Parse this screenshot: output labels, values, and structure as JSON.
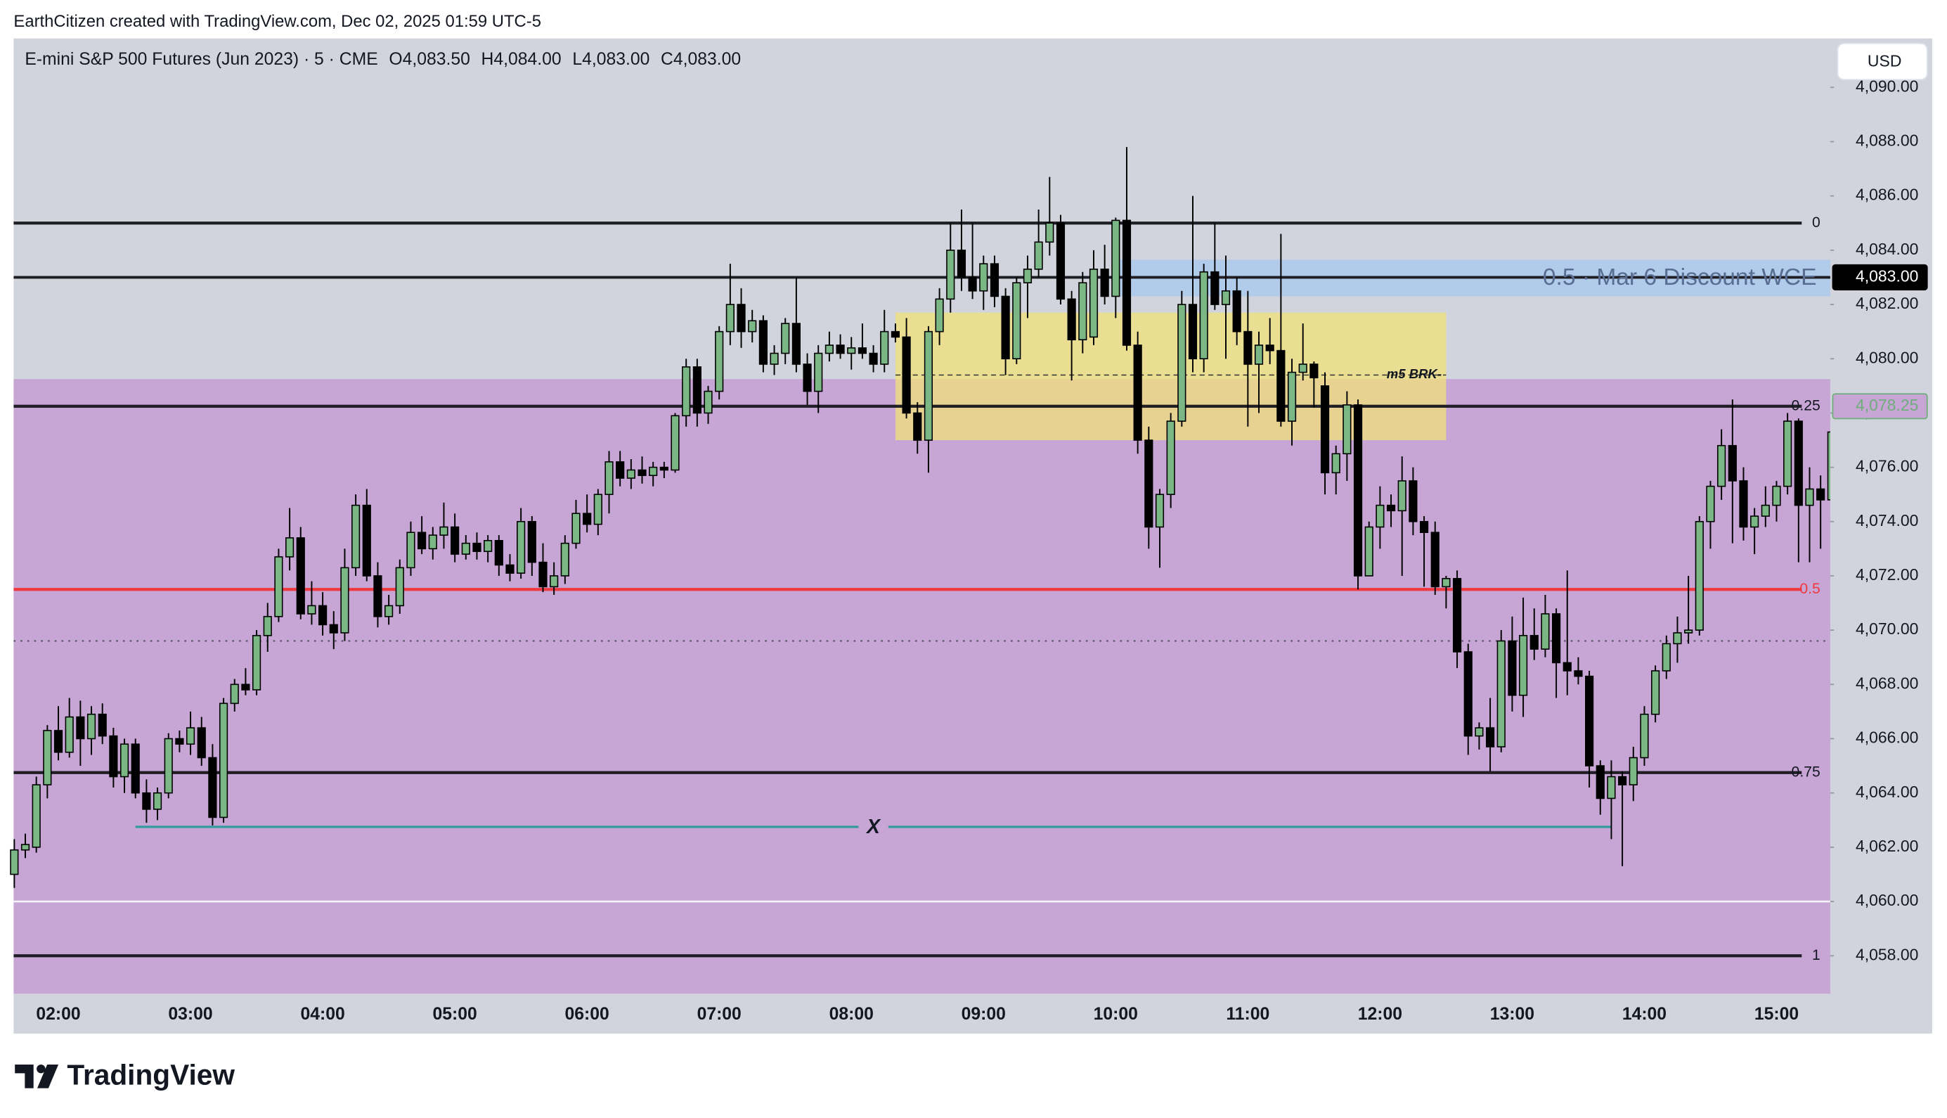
{
  "header": {
    "credit": "EarthCitizen created with TradingView.com, Dec 02, 2025 01:59 UTC-5"
  },
  "chart_data": {
    "type": "candlestick",
    "title": "E-mini S&P 500 Futures (Jun 2023) · 5 · CME",
    "ohlc_legend": [
      "O4,083.50",
      "H4,084.00",
      "L4,083.00",
      "C4,083.00"
    ],
    "currency": "USD",
    "up_color": "#7ab784",
    "down_color": "#000000",
    "x": [
      "01:40",
      "01:45",
      "01:50",
      "01:55",
      "02:00",
      "02:05",
      "02:10",
      "02:15",
      "02:20",
      "02:25",
      "02:30",
      "02:35",
      "02:40",
      "02:45",
      "02:50",
      "02:55",
      "03:00",
      "03:05",
      "03:10",
      "03:15",
      "03:20",
      "03:25",
      "03:30",
      "03:35",
      "03:40",
      "03:45",
      "03:50",
      "03:55",
      "04:00",
      "04:05",
      "04:10",
      "04:15",
      "04:20",
      "04:25",
      "04:30",
      "04:35",
      "04:40",
      "04:45",
      "04:50",
      "04:55",
      "05:00",
      "05:05",
      "05:10",
      "05:15",
      "05:20",
      "05:25",
      "05:30",
      "05:35",
      "05:40",
      "05:45",
      "05:50",
      "05:55",
      "06:00",
      "06:05",
      "06:10",
      "06:15",
      "06:20",
      "06:25",
      "06:30",
      "06:35",
      "06:40",
      "06:45",
      "06:50",
      "06:55",
      "07:00",
      "07:05",
      "07:10",
      "07:15",
      "07:20",
      "07:25",
      "07:30",
      "07:35",
      "07:40",
      "07:45",
      "07:50",
      "07:55",
      "08:00",
      "08:05",
      "08:10",
      "08:15",
      "08:20",
      "08:25",
      "08:30",
      "08:35",
      "08:40",
      "08:45",
      "08:50",
      "08:55",
      "09:00",
      "09:05",
      "09:10",
      "09:15",
      "09:20",
      "09:25",
      "09:30",
      "09:35",
      "09:40",
      "09:45",
      "09:50",
      "09:55",
      "10:00",
      "10:05",
      "10:10",
      "10:15",
      "10:20",
      "10:25",
      "10:30",
      "10:35",
      "10:40",
      "10:45",
      "10:50",
      "10:55",
      "11:00",
      "11:05",
      "11:10",
      "11:15",
      "11:20",
      "11:25",
      "11:30",
      "11:35",
      "11:40",
      "11:45",
      "11:50",
      "11:55",
      "12:00",
      "12:05",
      "12:10",
      "12:15",
      "12:20",
      "12:25",
      "12:30",
      "12:35",
      "12:40",
      "12:45",
      "12:50",
      "12:55",
      "13:00",
      "13:05",
      "13:10",
      "13:15",
      "13:20",
      "13:25",
      "13:30",
      "13:35",
      "13:40",
      "13:45",
      "13:50",
      "13:55",
      "14:00",
      "14:05",
      "14:10",
      "14:15",
      "14:20",
      "14:25",
      "14:30",
      "14:35",
      "14:40",
      "14:45",
      "14:50",
      "14:55",
      "15:00",
      "15:05",
      "15:10",
      "15:15",
      "15:20",
      "15:25"
    ],
    "candles": [
      [
        4061.0,
        4062.3,
        4060.5,
        4061.9
      ],
      [
        4061.9,
        4062.5,
        4061.6,
        4062.1
      ],
      [
        4062.0,
        4064.6,
        4061.8,
        4064.3
      ],
      [
        4064.3,
        4066.5,
        4063.8,
        4066.3
      ],
      [
        4066.3,
        4067.2,
        4065.2,
        4065.5
      ],
      [
        4065.5,
        4067.5,
        4065.3,
        4066.8
      ],
      [
        4066.8,
        4067.4,
        4065.0,
        4066.0
      ],
      [
        4066.0,
        4067.2,
        4065.4,
        4066.9
      ],
      [
        4066.9,
        4067.3,
        4065.8,
        4066.1
      ],
      [
        4066.1,
        4066.4,
        4064.2,
        4064.6
      ],
      [
        4064.6,
        4066.0,
        4064.0,
        4065.8
      ],
      [
        4065.8,
        4066.0,
        4063.8,
        4064.0
      ],
      [
        4064.0,
        4064.5,
        4062.9,
        4063.4
      ],
      [
        4063.4,
        4064.2,
        4063.0,
        4064.0
      ],
      [
        4064.0,
        4066.2,
        4063.8,
        4066.0
      ],
      [
        4066.0,
        4066.3,
        4065.5,
        4065.8
      ],
      [
        4065.8,
        4067.0,
        4065.4,
        4066.4
      ],
      [
        4066.4,
        4066.8,
        4065.0,
        4065.3
      ],
      [
        4065.3,
        4065.8,
        4062.8,
        4063.1
      ],
      [
        4063.1,
        4067.5,
        4062.9,
        4067.3
      ],
      [
        4067.3,
        4068.2,
        4067.0,
        4068.0
      ],
      [
        4068.0,
        4068.6,
        4067.6,
        4067.8
      ],
      [
        4067.8,
        4070.0,
        4067.6,
        4069.8
      ],
      [
        4069.8,
        4071.0,
        4069.2,
        4070.5
      ],
      [
        4070.5,
        4073.0,
        4070.3,
        4072.7
      ],
      [
        4072.7,
        4074.5,
        4072.2,
        4073.4
      ],
      [
        4073.4,
        4073.8,
        4070.4,
        4070.6
      ],
      [
        4070.6,
        4071.8,
        4070.2,
        4070.9
      ],
      [
        4070.9,
        4071.4,
        4069.8,
        4070.2
      ],
      [
        4070.2,
        4070.7,
        4069.3,
        4069.9
      ],
      [
        4069.9,
        4073.0,
        4069.6,
        4072.3
      ],
      [
        4072.3,
        4075.0,
        4072.0,
        4074.6
      ],
      [
        4074.6,
        4075.2,
        4071.8,
        4072.0
      ],
      [
        4072.0,
        4072.5,
        4070.1,
        4070.5
      ],
      [
        4070.5,
        4071.3,
        4070.2,
        4070.9
      ],
      [
        4070.9,
        4072.6,
        4070.6,
        4072.3
      ],
      [
        4072.3,
        4074.0,
        4072.0,
        4073.6
      ],
      [
        4073.6,
        4074.2,
        4072.8,
        4073.0
      ],
      [
        4073.0,
        4073.8,
        4072.6,
        4073.5
      ],
      [
        4073.5,
        4074.7,
        4073.0,
        4073.8
      ],
      [
        4073.8,
        4074.3,
        4072.5,
        4072.8
      ],
      [
        4072.8,
        4073.5,
        4072.6,
        4073.2
      ],
      [
        4073.2,
        4073.6,
        4072.6,
        4072.9
      ],
      [
        4072.9,
        4073.5,
        4072.5,
        4073.3
      ],
      [
        4073.3,
        4073.5,
        4072.0,
        4072.4
      ],
      [
        4072.4,
        4072.8,
        4071.8,
        4072.1
      ],
      [
        4072.1,
        4074.5,
        4071.9,
        4074.0
      ],
      [
        4074.0,
        4074.2,
        4072.0,
        4072.5
      ],
      [
        4072.5,
        4073.2,
        4071.4,
        4071.6
      ],
      [
        4071.6,
        4072.5,
        4071.3,
        4072.0
      ],
      [
        4072.0,
        4073.5,
        4071.7,
        4073.2
      ],
      [
        4073.2,
        4074.8,
        4073.0,
        4074.3
      ],
      [
        4074.3,
        4075.0,
        4073.6,
        4073.9
      ],
      [
        4073.9,
        4075.2,
        4073.5,
        4075.0
      ],
      [
        4075.0,
        4076.6,
        4074.3,
        4076.2
      ],
      [
        4076.2,
        4076.6,
        4075.3,
        4075.6
      ],
      [
        4075.6,
        4076.3,
        4075.2,
        4075.9
      ],
      [
        4075.9,
        4076.4,
        4075.4,
        4075.7
      ],
      [
        4075.7,
        4076.2,
        4075.3,
        4076.0
      ],
      [
        4076.0,
        4076.2,
        4075.6,
        4075.9
      ],
      [
        4075.9,
        4078.0,
        4075.8,
        4077.9
      ],
      [
        4077.9,
        4080.0,
        4077.5,
        4079.7
      ],
      [
        4079.7,
        4080.0,
        4077.5,
        4078.0
      ],
      [
        4078.0,
        4079.0,
        4077.6,
        4078.8
      ],
      [
        4078.8,
        4081.2,
        4078.5,
        4081.0
      ],
      [
        4081.0,
        4083.5,
        4080.5,
        4082.0
      ],
      [
        4082.0,
        4082.6,
        4080.4,
        4081.0
      ],
      [
        4081.0,
        4081.8,
        4080.6,
        4081.4
      ],
      [
        4081.4,
        4081.6,
        4079.5,
        4079.8
      ],
      [
        4079.8,
        4080.5,
        4079.4,
        4080.2
      ],
      [
        4080.2,
        4081.5,
        4079.8,
        4081.3
      ],
      [
        4081.3,
        4083.0,
        4079.5,
        4079.8
      ],
      [
        4079.8,
        4080.2,
        4078.3,
        4078.8
      ],
      [
        4078.8,
        4080.5,
        4078.0,
        4080.2
      ],
      [
        4080.2,
        4081.0,
        4079.9,
        4080.5
      ],
      [
        4080.5,
        4080.9,
        4080.0,
        4080.2
      ],
      [
        4080.2,
        4080.8,
        4079.6,
        4080.4
      ],
      [
        4080.4,
        4081.3,
        4080.0,
        4080.2
      ],
      [
        4080.2,
        4080.5,
        4079.5,
        4079.8
      ],
      [
        4079.8,
        4081.8,
        4079.5,
        4081.0
      ],
      [
        4081.0,
        4081.3,
        4080.6,
        4080.8
      ],
      [
        4080.8,
        4081.5,
        4077.8,
        4078.0
      ],
      [
        4078.0,
        4078.4,
        4076.5,
        4077.0
      ],
      [
        4077.0,
        4081.2,
        4075.8,
        4081.0
      ],
      [
        4081.0,
        4082.6,
        4080.5,
        4082.2
      ],
      [
        4082.2,
        4085.0,
        4081.7,
        4084.0
      ],
      [
        4084.0,
        4085.5,
        4082.5,
        4083.0
      ],
      [
        4083.0,
        4085.0,
        4082.2,
        4082.5
      ],
      [
        4082.5,
        4083.8,
        4081.8,
        4083.5
      ],
      [
        4083.5,
        4083.8,
        4081.9,
        4082.3
      ],
      [
        4082.3,
        4082.6,
        4079.4,
        4080.0
      ],
      [
        4080.0,
        4083.0,
        4079.8,
        4082.8
      ],
      [
        4082.8,
        4083.8,
        4081.5,
        4083.3
      ],
      [
        4083.3,
        4085.5,
        4083.0,
        4084.3
      ],
      [
        4084.3,
        4086.7,
        4083.8,
        4085.0
      ],
      [
        4085.0,
        4085.3,
        4082.0,
        4082.2
      ],
      [
        4082.2,
        4082.5,
        4079.2,
        4080.7
      ],
      [
        4080.7,
        4083.2,
        4080.2,
        4082.8
      ],
      [
        4080.8,
        4084.0,
        4080.5,
        4083.3
      ],
      [
        4083.3,
        4084.2,
        4082.0,
        4082.3
      ],
      [
        4082.3,
        4085.2,
        4081.5,
        4085.1
      ],
      [
        4085.1,
        4087.8,
        4080.3,
        4080.5
      ],
      [
        4080.5,
        4081.0,
        4076.5,
        4077.0
      ],
      [
        4077.0,
        4077.5,
        4073.0,
        4073.8
      ],
      [
        4073.8,
        4075.2,
        4072.3,
        4075.0
      ],
      [
        4075.0,
        4078.0,
        4074.5,
        4077.7
      ],
      [
        4077.7,
        4082.5,
        4077.5,
        4082.0
      ],
      [
        4082.0,
        4086.0,
        4079.5,
        4080.0
      ],
      [
        4080.0,
        4083.5,
        4079.5,
        4083.2
      ],
      [
        4083.2,
        4085.0,
        4081.8,
        4082.0
      ],
      [
        4082.0,
        4083.8,
        4080.0,
        4082.5
      ],
      [
        4082.5,
        4083.0,
        4080.5,
        4081.0
      ],
      [
        4081.0,
        4082.5,
        4077.5,
        4079.8
      ],
      [
        4079.8,
        4081.0,
        4078.0,
        4080.5
      ],
      [
        4080.5,
        4081.5,
        4079.8,
        4080.3
      ],
      [
        4080.3,
        4084.6,
        4077.5,
        4077.7
      ],
      [
        4077.7,
        4080.0,
        4076.8,
        4079.5
      ],
      [
        4079.5,
        4081.3,
        4079.2,
        4079.8
      ],
      [
        4079.8,
        4079.9,
        4078.2,
        4079.3
      ],
      [
        4079.0,
        4079.5,
        4075.0,
        4075.8
      ],
      [
        4075.8,
        4076.8,
        4075.0,
        4076.5
      ],
      [
        4076.5,
        4078.8,
        4075.5,
        4078.3
      ],
      [
        4078.3,
        4078.5,
        4071.5,
        4072.0
      ],
      [
        4072.0,
        4074.0,
        4072.0,
        4073.8
      ],
      [
        4073.8,
        4075.3,
        4073.0,
        4074.6
      ],
      [
        4074.6,
        4075.0,
        4073.8,
        4074.4
      ],
      [
        4074.4,
        4076.4,
        4072.0,
        4075.5
      ],
      [
        4075.5,
        4076.0,
        4073.5,
        4074.0
      ],
      [
        4074.0,
        4074.2,
        4071.6,
        4073.6
      ],
      [
        4073.6,
        4074.0,
        4071.3,
        4071.6
      ],
      [
        4071.6,
        4072.0,
        4070.8,
        4071.9
      ],
      [
        4071.9,
        4072.2,
        4068.6,
        4069.2
      ],
      [
        4069.2,
        4069.5,
        4065.4,
        4066.1
      ],
      [
        4066.1,
        4066.6,
        4065.6,
        4066.4
      ],
      [
        4066.4,
        4067.5,
        4064.8,
        4065.7
      ],
      [
        4065.7,
        4070.0,
        4065.5,
        4069.6
      ],
      [
        4069.6,
        4070.5,
        4067.0,
        4067.6
      ],
      [
        4067.6,
        4071.2,
        4066.8,
        4069.8
      ],
      [
        4069.8,
        4070.8,
        4068.9,
        4069.3
      ],
      [
        4069.3,
        4071.3,
        4069.0,
        4070.6
      ],
      [
        4070.6,
        4070.8,
        4067.5,
        4068.8
      ],
      [
        4068.8,
        4072.2,
        4067.6,
        4068.5
      ],
      [
        4068.5,
        4069.0,
        4068.0,
        4068.3
      ],
      [
        4068.3,
        4068.5,
        4064.2,
        4065.0
      ],
      [
        4065.0,
        4065.2,
        4063.2,
        4063.8
      ],
      [
        4063.8,
        4065.2,
        4062.3,
        4064.6
      ],
      [
        4064.6,
        4064.8,
        4061.3,
        4064.3
      ],
      [
        4064.3,
        4065.7,
        4063.7,
        4065.3
      ],
      [
        4065.3,
        4067.2,
        4065.0,
        4066.9
      ],
      [
        4066.9,
        4068.7,
        4066.6,
        4068.5
      ],
      [
        4068.5,
        4069.8,
        4068.2,
        4069.5
      ],
      [
        4069.5,
        4070.5,
        4068.8,
        4069.9
      ],
      [
        4069.9,
        4072.0,
        4069.5,
        4070.0
      ],
      [
        4070.0,
        4074.2,
        4069.8,
        4074.0
      ],
      [
        4074.0,
        4075.5,
        4073.0,
        4075.3
      ],
      [
        4075.3,
        4077.4,
        4074.8,
        4076.8
      ],
      [
        4076.8,
        4078.5,
        4073.2,
        4075.5
      ],
      [
        4075.5,
        4076.0,
        4073.3,
        4073.8
      ],
      [
        4073.8,
        4074.5,
        4072.8,
        4074.2
      ],
      [
        4074.2,
        4075.3,
        4073.8,
        4074.6
      ],
      [
        4074.6,
        4075.5,
        4074.0,
        4075.3
      ],
      [
        4075.3,
        4078.0,
        4075.0,
        4077.7
      ],
      [
        4077.7,
        4077.8,
        4072.5,
        4074.6
      ],
      [
        4074.6,
        4076.0,
        4072.5,
        4075.2
      ],
      [
        4075.2,
        4075.7,
        4073.0,
        4074.8
      ],
      [
        4074.8,
        4077.5,
        4074.6,
        4077.3
      ]
    ],
    "ylim": [
      4056.6,
      4091.8
    ],
    "yticks": [
      {
        "value": 4058,
        "label": "4,058.00"
      },
      {
        "value": 4060,
        "label": "4,060.00"
      },
      {
        "value": 4062,
        "label": "4,062.00"
      },
      {
        "value": 4064,
        "label": "4,064.00"
      },
      {
        "value": 4066,
        "label": "4,066.00"
      },
      {
        "value": 4068,
        "label": "4,068.00"
      },
      {
        "value": 4070,
        "label": "4,070.00"
      },
      {
        "value": 4072,
        "label": "4,072.00"
      },
      {
        "value": 4074,
        "label": "4,074.00"
      },
      {
        "value": 4076,
        "label": "4,076.00"
      },
      {
        "value": 4078,
        "label": "4,078.00"
      },
      {
        "value": 4080,
        "label": "4,080.00"
      },
      {
        "value": 4082,
        "label": "4,082.00"
      },
      {
        "value": 4084,
        "label": "4,084.00"
      },
      {
        "value": 4086,
        "label": "4,086.00"
      },
      {
        "value": 4088,
        "label": "4,088.00"
      },
      {
        "value": 4090,
        "label": "4,090.00"
      }
    ],
    "xticks": [
      "02:00",
      "03:00",
      "04:00",
      "05:00",
      "06:00",
      "07:00",
      "08:00",
      "09:00",
      "10:00",
      "11:00",
      "12:00",
      "13:00",
      "14:00",
      "15:00"
    ],
    "price_labels": [
      {
        "value": 4083,
        "label": "4,083.00",
        "color": "#000000"
      },
      {
        "value": 4078.25,
        "label": "4,078.25",
        "color": "#6fae7b"
      }
    ],
    "background_zone": {
      "top": 4079.25,
      "color": "#c7a5d5",
      "above_color": "#d1d4dc"
    },
    "fib_levels": [
      {
        "ratio": 0,
        "price": 4085,
        "color": "#1e1e24"
      },
      {
        "ratio": 0.25,
        "price": 4078.25,
        "color": "#1e1e24"
      },
      {
        "ratio": 0.5,
        "price": 4071.5,
        "color": "#f0393f"
      },
      {
        "ratio": 0.75,
        "price": 4064.75,
        "color": "#1e1e24"
      },
      {
        "ratio": 1,
        "price": 4058,
        "color": "#1e1e24"
      }
    ],
    "lines": [
      {
        "price": 4083,
        "color": "#1e1e24",
        "width": 2.2,
        "dash": ""
      },
      {
        "price": 4069.6,
        "color": "#555560",
        "width": 1.2,
        "dash": "1.5,4"
      },
      {
        "price": 4060,
        "color": "#f4f4f8",
        "width": 1.5,
        "dash": ""
      }
    ],
    "boxes": [
      {
        "top": 4081.7,
        "bottom": 4077.0,
        "start": "08:20",
        "end": "12:30",
        "color": "#f2e27a",
        "opacity": 0.75,
        "mid": 4079.4,
        "text": "m5 BRK-"
      },
      {
        "top": 4083.65,
        "bottom": 4082.3,
        "start": "10:00",
        "end": "15:25",
        "color": "#a9c8ee",
        "opacity": 0.8,
        "mid": 4083,
        "text": "0.5 · Mar 6 Discount WCE"
      }
    ],
    "marker_line": {
      "price": 4062.75,
      "start": "02:35",
      "end": "13:45",
      "color": "#2f9a9f",
      "text": "X"
    }
  },
  "footer": {
    "brand": "TradingView"
  }
}
